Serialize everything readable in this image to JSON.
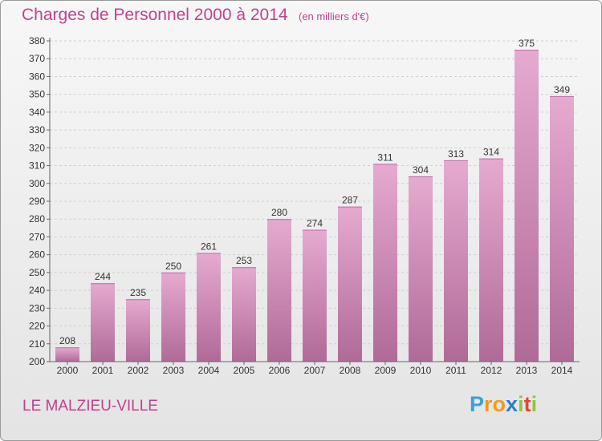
{
  "header": {
    "title": "Charges de Personnel 2000 à 2014",
    "unit": "(en milliers d'€)"
  },
  "footer": {
    "commune": "LE MALZIEU-VILLE",
    "logo_letters": [
      "P",
      "r",
      "o",
      "x",
      "i",
      "t",
      "i"
    ],
    "logo_colors": [
      "#3aa0d8",
      "#f39a1b",
      "#f39a1b",
      "#2e7fc0",
      "#8cc63f",
      "#e8413c",
      "#8cc63f"
    ]
  },
  "colors": {
    "bar_top": "#e6aad0",
    "bar_bottom": "#b06a98",
    "text_accent": "#c2408e"
  },
  "chart_data": {
    "type": "bar",
    "title": "Charges de Personnel 2000 à 2014",
    "subtitle": "(en milliers d'€)",
    "xlabel": "",
    "ylabel": "",
    "categories": [
      "2000",
      "2001",
      "2002",
      "2003",
      "2004",
      "2005",
      "2006",
      "2007",
      "2008",
      "2009",
      "2010",
      "2011",
      "2012",
      "2013",
      "2014"
    ],
    "values": [
      208,
      244,
      235,
      250,
      261,
      253,
      280,
      274,
      287,
      311,
      304,
      313,
      314,
      375,
      349
    ],
    "ylim": [
      200,
      380
    ],
    "yticks": [
      200,
      210,
      220,
      230,
      240,
      250,
      260,
      270,
      280,
      290,
      300,
      310,
      320,
      330,
      340,
      350,
      360,
      370,
      380
    ],
    "grid": true,
    "legend": "none"
  }
}
